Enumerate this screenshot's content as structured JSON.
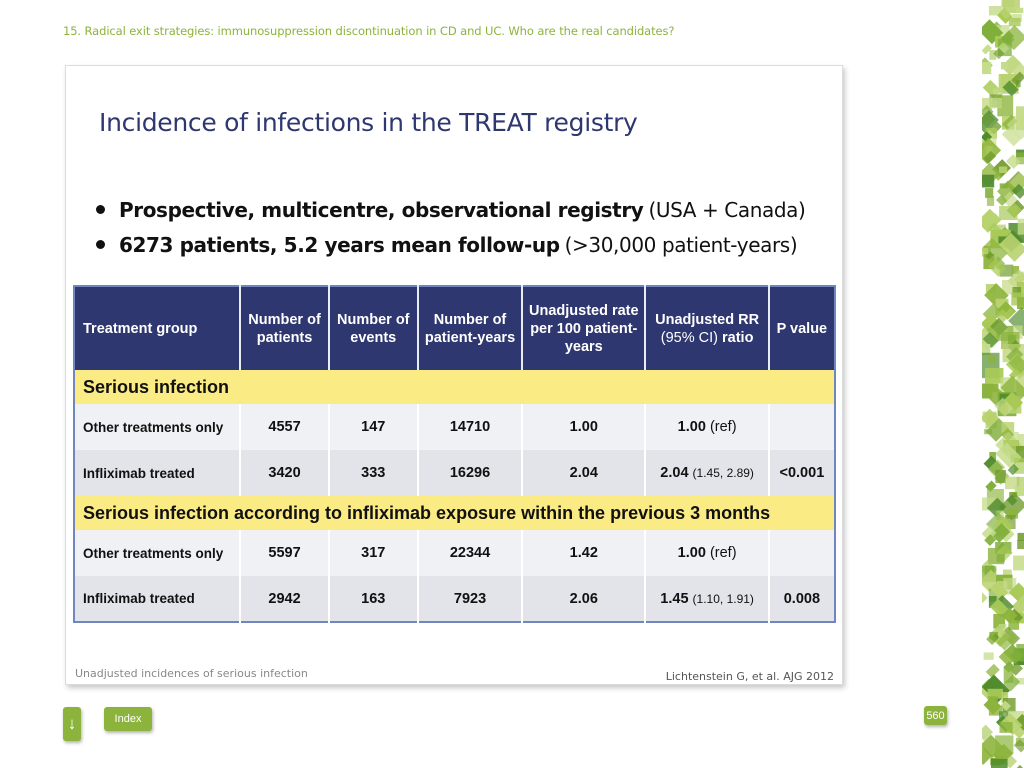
{
  "header": {
    "title": "15. Radical exit strategies: immunosuppression discontinuation in CD and UC. Who are the real candidates?"
  },
  "slide": {
    "title": "Incidence of infections in the TREAT registry",
    "bullets": [
      {
        "bold": "Prospective, multicentre, observational registry",
        "normal": "(USA + Canada)"
      },
      {
        "bold": "6273 patients, 5.2 years mean follow-up",
        "normal": "(>30,000 patient-years)"
      }
    ],
    "table": {
      "headers": {
        "group": "Treatment group",
        "patients": "Number of patients",
        "events": "Number of events",
        "patient_years": "Number of patient-years",
        "rate": "Unadjusted rate per 100 patient-years",
        "rr_bold": "Unadjusted RR",
        "rr_ci": "(95% CI)",
        "rr_ratio": "ratio",
        "p": "P value"
      },
      "sections": [
        {
          "title": "Serious infection",
          "rows": [
            {
              "group": "Other treatments only",
              "patients": "4557",
              "events": "147",
              "patient_years": "14710",
              "rate": "1.00",
              "rr": "1.00",
              "rr_detail": "(ref)",
              "p": ""
            },
            {
              "group": "Infliximab treated",
              "patients": "3420",
              "events": "333",
              "patient_years": "16296",
              "rate": "2.04",
              "rr": "2.04",
              "rr_detail": "(1.45, 2.89)",
              "p": "<0.001"
            }
          ]
        },
        {
          "title": "Serious infection according to infliximab exposure within the previous 3 months",
          "rows": [
            {
              "group": "Other treatments only",
              "patients": "5597",
              "events": "317",
              "patient_years": "22344",
              "rate": "1.42",
              "rr": "1.00",
              "rr_detail": "(ref)",
              "p": ""
            },
            {
              "group": "Infliximab treated",
              "patients": "2942",
              "events": "163",
              "patient_years": "7923",
              "rate": "2.06",
              "rr": "1.45",
              "rr_detail": "(1.10, 1.91)",
              "p": "0.008"
            }
          ]
        }
      ]
    },
    "footnote": "Unadjusted incidences of serious infection",
    "citation": "Lichtenstein G, et al. AJG 2012"
  },
  "nav": {
    "index_label": "Index",
    "page_number": "560",
    "down_icon": "down-arrow-icon"
  },
  "colors": {
    "accent": "#8cb43c",
    "header_navy": "#2f3770",
    "band_yellow": "#fbeb85"
  }
}
